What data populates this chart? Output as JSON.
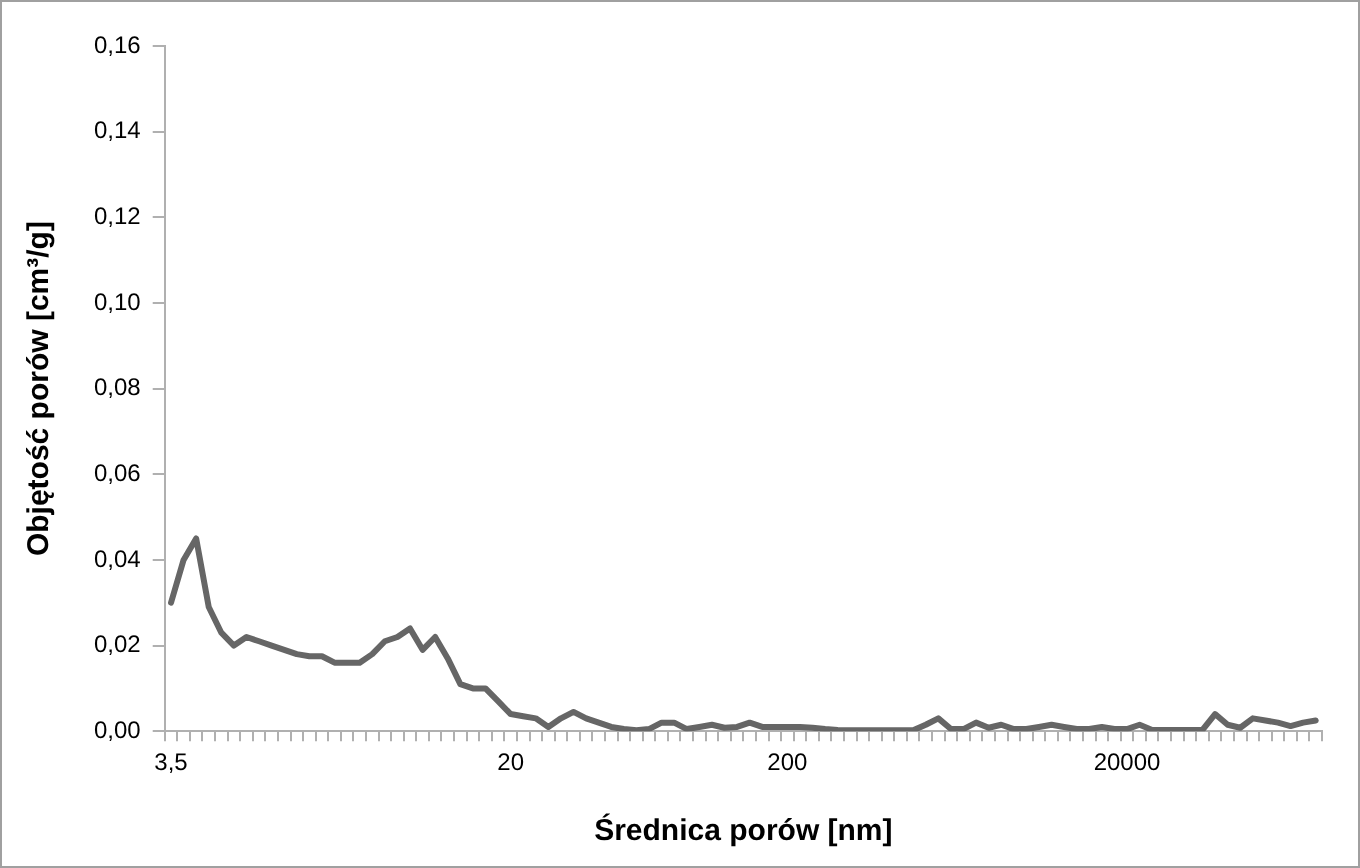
{
  "chart_data": {
    "type": "line",
    "xlabel": "Średnica porów [nm]",
    "ylabel": "Objętość porów [cm³/g]",
    "categories": [
      "3,5",
      null,
      null,
      null,
      null,
      null,
      null,
      null,
      null,
      null,
      null,
      null,
      null,
      null,
      null,
      null,
      null,
      null,
      null,
      null,
      null,
      null,
      null,
      null,
      null,
      null,
      null,
      "20",
      null,
      null,
      null,
      null,
      null,
      null,
      null,
      null,
      null,
      null,
      null,
      null,
      null,
      null,
      null,
      null,
      null,
      null,
      null,
      null,
      null,
      "200",
      null,
      null,
      null,
      null,
      null,
      null,
      null,
      null,
      null,
      null,
      null,
      null,
      null,
      null,
      null,
      null,
      null,
      null,
      null,
      null,
      null,
      null,
      null,
      null,
      null,
      null,
      "20000",
      null,
      null,
      null,
      null,
      null,
      null,
      null,
      null,
      null,
      null,
      null,
      null,
      null,
      null,
      null
    ],
    "series": [
      {
        "color": "#666666",
        "values": [
          0.03,
          0.04,
          0.045,
          0.029,
          0.023,
          0.02,
          0.022,
          0.021,
          0.02,
          0.019,
          0.018,
          0.0175,
          0.0175,
          0.016,
          0.016,
          0.016,
          0.018,
          0.021,
          0.022,
          0.024,
          0.019,
          0.022,
          0.017,
          0.011,
          0.01,
          0.01,
          0.007,
          0.004,
          0.0035,
          0.003,
          0.001,
          0.003,
          0.0045,
          0.003,
          0.002,
          0.001,
          0.0005,
          0.0002,
          0.0005,
          0.002,
          0.002,
          0.0005,
          0.001,
          0.0015,
          0.0008,
          0.001,
          0.002,
          0.001,
          0.001,
          0.001,
          0.001,
          0.0008,
          0.0005,
          0.0003,
          0.0002,
          0.0002,
          0.0002,
          0.0002,
          0.0002,
          0.0002,
          0.0015,
          0.003,
          0.0005,
          0.0005,
          0.002,
          0.0008,
          0.0015,
          0.0005,
          0.0005,
          0.001,
          0.0015,
          0.001,
          0.0005,
          0.0005,
          0.001,
          0.0005,
          0.0005,
          0.0015,
          0.0003,
          0.0003,
          0.0003,
          0.0003,
          0.0003,
          0.004,
          0.0015,
          0.0008,
          0.003,
          0.0025,
          0.002,
          0.0012,
          0.002,
          0.0025
        ]
      }
    ],
    "ylim": [
      0,
      0.16
    ],
    "yticks": [
      {
        "value": 0,
        "label": "0,00"
      },
      {
        "value": 0.02,
        "label": "0,02"
      },
      {
        "value": 0.04,
        "label": "0,04"
      },
      {
        "value": 0.06,
        "label": "0,06"
      },
      {
        "value": 0.08,
        "label": "0,08"
      },
      {
        "value": 0.1,
        "label": "0,10"
      },
      {
        "value": 0.12,
        "label": "0,12"
      },
      {
        "value": 0.14,
        "label": "0,14"
      },
      {
        "value": 0.16,
        "label": "0,16"
      }
    ],
    "marker": "none",
    "line_style": "solid",
    "legend": false,
    "grid": false
  }
}
